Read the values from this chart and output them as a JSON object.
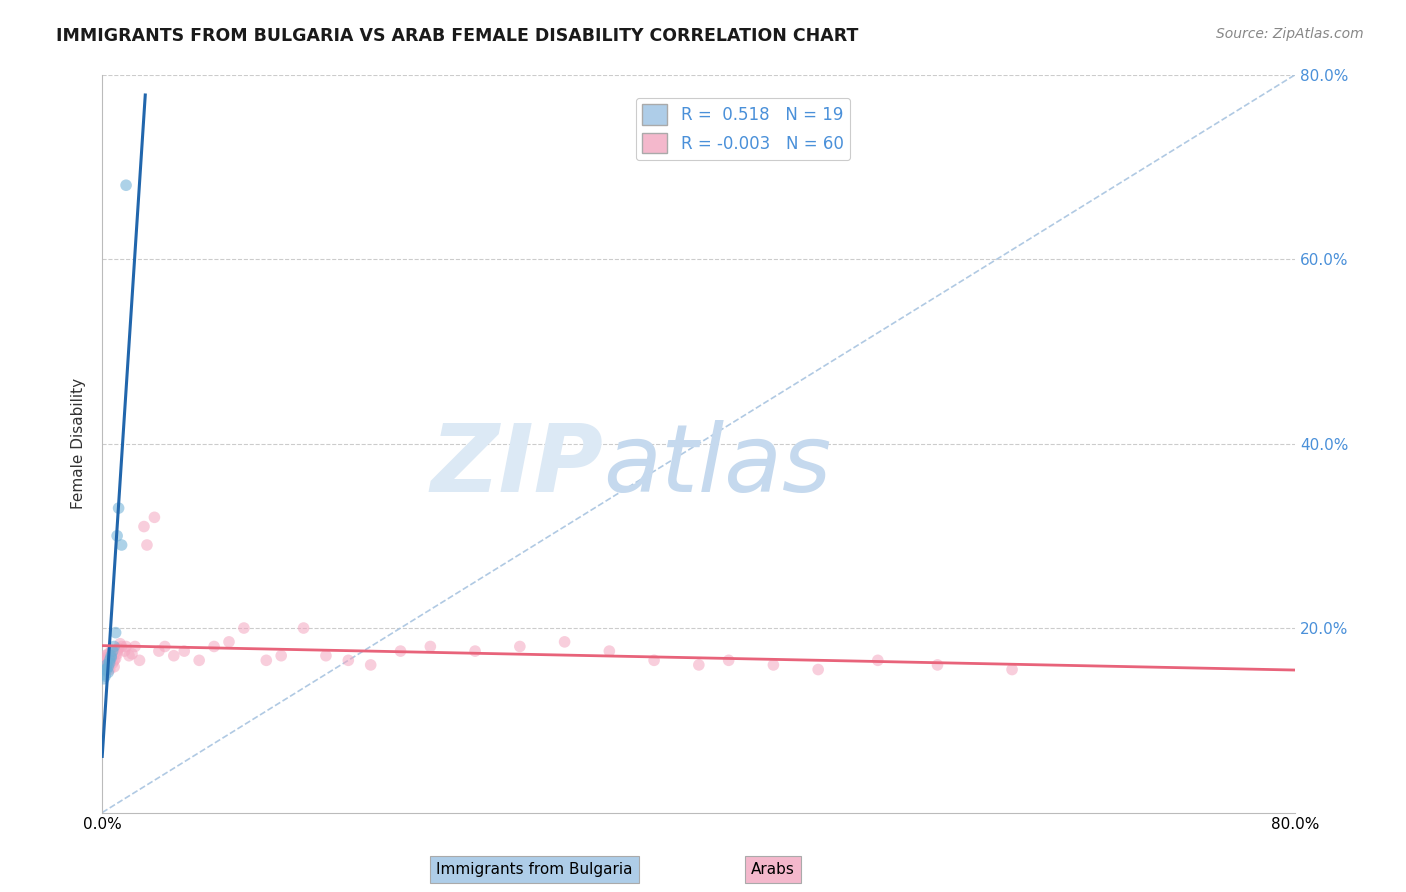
{
  "title": "IMMIGRANTS FROM BULGARIA VS ARAB FEMALE DISABILITY CORRELATION CHART",
  "source": "Source: ZipAtlas.com",
  "ylabel": "Female Disability",
  "xlim": [
    0.0,
    0.8
  ],
  "ylim": [
    0.0,
    0.8
  ],
  "yticks": [
    0.0,
    0.2,
    0.4,
    0.6,
    0.8
  ],
  "legend1_r": "0.518",
  "legend1_n": "19",
  "legend2_r": "-0.003",
  "legend2_n": "60",
  "legend1_color": "#aecde8",
  "legend2_color": "#f4b8cc",
  "bg_color": "#ffffff",
  "grid_color": "#cccccc",
  "bulgaria_x": [
    0.001,
    0.001,
    0.002,
    0.002,
    0.003,
    0.003,
    0.004,
    0.004,
    0.005,
    0.005,
    0.006,
    0.006,
    0.007,
    0.008,
    0.009,
    0.01,
    0.011,
    0.013,
    0.016
  ],
  "bulgaria_y": [
    0.145,
    0.15,
    0.148,
    0.155,
    0.155,
    0.16,
    0.152,
    0.158,
    0.162,
    0.165,
    0.168,
    0.17,
    0.175,
    0.18,
    0.195,
    0.3,
    0.33,
    0.29,
    0.68
  ],
  "arab_x": [
    0.001,
    0.001,
    0.002,
    0.002,
    0.003,
    0.003,
    0.003,
    0.004,
    0.004,
    0.005,
    0.005,
    0.006,
    0.006,
    0.007,
    0.007,
    0.008,
    0.008,
    0.009,
    0.01,
    0.01,
    0.011,
    0.012,
    0.013,
    0.015,
    0.016,
    0.018,
    0.02,
    0.022,
    0.025,
    0.028,
    0.03,
    0.035,
    0.038,
    0.042,
    0.048,
    0.055,
    0.065,
    0.075,
    0.085,
    0.095,
    0.11,
    0.12,
    0.135,
    0.15,
    0.165,
    0.18,
    0.2,
    0.22,
    0.25,
    0.28,
    0.31,
    0.34,
    0.37,
    0.4,
    0.42,
    0.45,
    0.48,
    0.52,
    0.56,
    0.61
  ],
  "arab_y": [
    0.16,
    0.165,
    0.155,
    0.17,
    0.158,
    0.162,
    0.168,
    0.16,
    0.172,
    0.155,
    0.165,
    0.168,
    0.175,
    0.162,
    0.17,
    0.158,
    0.165,
    0.167,
    0.172,
    0.175,
    0.178,
    0.183,
    0.18,
    0.175,
    0.18,
    0.17,
    0.172,
    0.18,
    0.165,
    0.31,
    0.29,
    0.32,
    0.175,
    0.18,
    0.17,
    0.175,
    0.165,
    0.18,
    0.185,
    0.2,
    0.165,
    0.17,
    0.2,
    0.17,
    0.165,
    0.16,
    0.175,
    0.18,
    0.175,
    0.18,
    0.185,
    0.175,
    0.165,
    0.16,
    0.165,
    0.16,
    0.155,
    0.165,
    0.16,
    0.155
  ],
  "bulgaria_color": "#6baed6",
  "arab_color": "#f4a6c0",
  "trendline_bulgaria_color": "#2166ac",
  "trendline_arab_color": "#e8637a",
  "scatter_alpha": 0.55,
  "scatter_size": 70,
  "diag_color": "#a8c4e0",
  "diag_style": "--"
}
